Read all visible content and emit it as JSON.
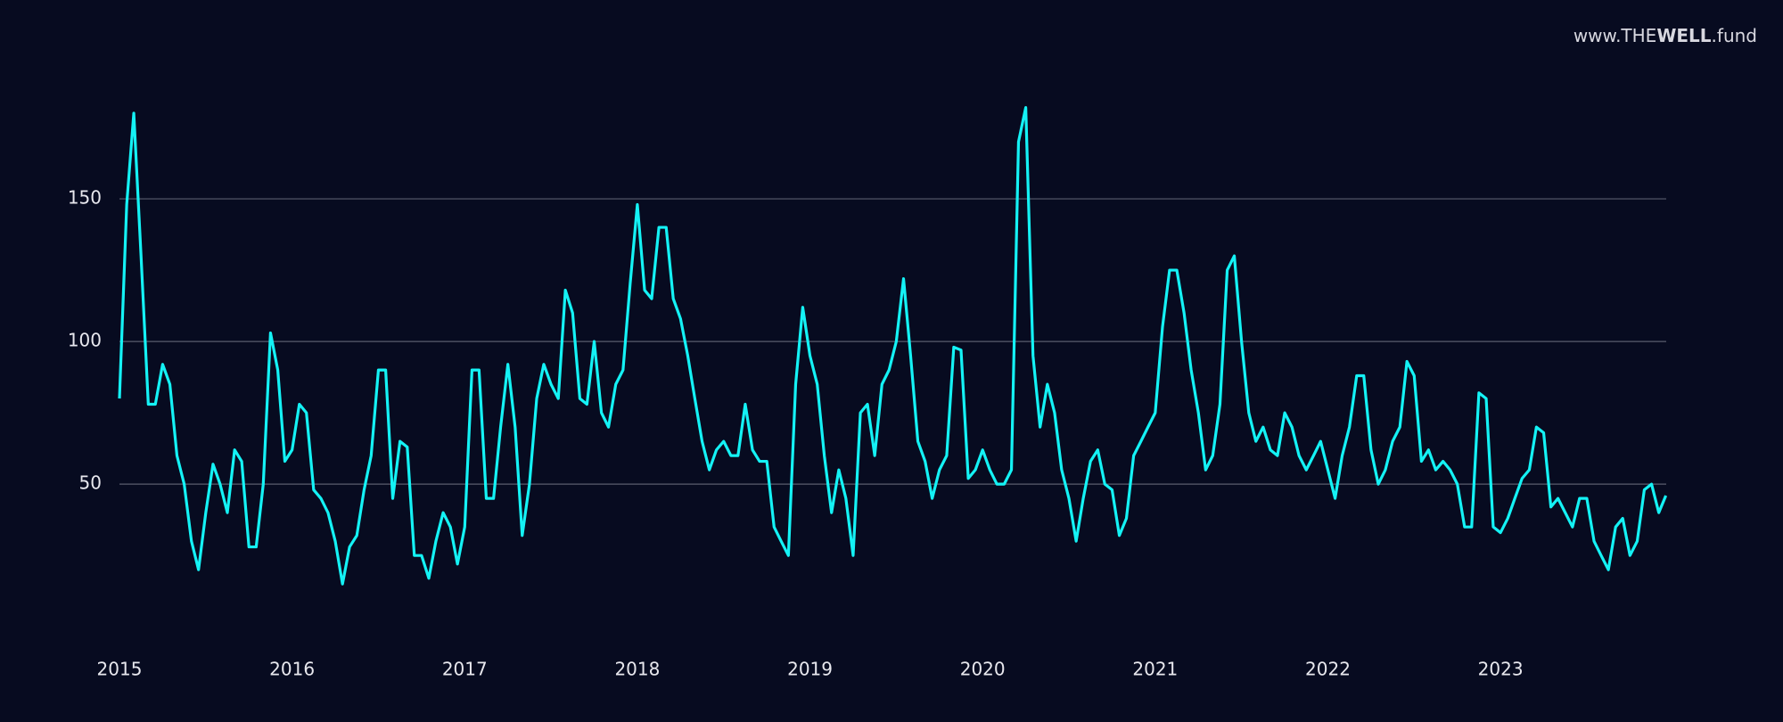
{
  "watermark": {
    "prefix": "www.",
    "brand_light": "THE",
    "brand_bold": "WELL",
    "suffix": ".fund"
  },
  "chart_data": {
    "type": "line",
    "x": [
      2015,
      2015.042,
      2015.083,
      2015.125,
      2015.167,
      2015.208,
      2015.25,
      2015.292,
      2015.333,
      2015.375,
      2015.417,
      2015.458,
      2015.5,
      2015.542,
      2015.583,
      2015.625,
      2015.667,
      2015.708,
      2015.75,
      2015.792,
      2015.833,
      2015.875,
      2015.917,
      2015.958,
      2016,
      2016.042,
      2016.083,
      2016.125,
      2016.167,
      2016.208,
      2016.25,
      2016.292,
      2016.333,
      2016.375,
      2016.417,
      2016.458,
      2016.5,
      2016.542,
      2016.583,
      2016.625,
      2016.667,
      2016.708,
      2016.75,
      2016.792,
      2016.833,
      2016.875,
      2016.917,
      2016.958,
      2017,
      2017.042,
      2017.083,
      2017.125,
      2017.167,
      2017.208,
      2017.25,
      2017.292,
      2017.333,
      2017.375,
      2017.417,
      2017.458,
      2017.5,
      2017.542,
      2017.583,
      2017.625,
      2017.667,
      2017.708,
      2017.75,
      2017.792,
      2017.833,
      2017.875,
      2017.917,
      2017.958,
      2018,
      2018.042,
      2018.083,
      2018.125,
      2018.167,
      2018.208,
      2018.25,
      2018.292,
      2018.333,
      2018.375,
      2018.417,
      2018.458,
      2018.5,
      2018.542,
      2018.583,
      2018.625,
      2018.667,
      2018.708,
      2018.75,
      2018.792,
      2018.833,
      2018.875,
      2018.917,
      2018.958,
      2019,
      2019.042,
      2019.083,
      2019.125,
      2019.167,
      2019.208,
      2019.25,
      2019.292,
      2019.333,
      2019.375,
      2019.417,
      2019.458,
      2019.5,
      2019.542,
      2019.583,
      2019.625,
      2019.667,
      2019.708,
      2019.75,
      2019.792,
      2019.833,
      2019.875,
      2019.917,
      2019.958,
      2020,
      2020.042,
      2020.083,
      2020.125,
      2020.167,
      2020.208,
      2020.25,
      2020.292,
      2020.333,
      2020.375,
      2020.417,
      2020.458,
      2020.5,
      2020.542,
      2020.583,
      2020.625,
      2020.667,
      2020.708,
      2020.75,
      2020.792,
      2020.833,
      2020.875,
      2020.917,
      2020.958,
      2021,
      2021.042,
      2021.083,
      2021.125,
      2021.167,
      2021.208,
      2021.25,
      2021.292,
      2021.333,
      2021.375,
      2021.417,
      2021.458,
      2021.5,
      2021.542,
      2021.583,
      2021.625,
      2021.667,
      2021.708,
      2021.75,
      2021.792,
      2021.833,
      2021.875,
      2021.917,
      2021.958,
      2022,
      2022.042,
      2022.083,
      2022.125,
      2022.167,
      2022.208,
      2022.25,
      2022.292,
      2022.333,
      2022.375,
      2022.417,
      2022.458,
      2022.5,
      2022.542,
      2022.583,
      2022.625,
      2022.667,
      2022.708,
      2022.75,
      2022.792,
      2022.833,
      2022.875,
      2022.917,
      2022.958,
      2023,
      2023.042,
      2023.083,
      2023.125,
      2023.167,
      2023.208,
      2023.25,
      2023.292,
      2023.333,
      2023.375,
      2023.417,
      2023.458,
      2023.5,
      2023.542,
      2023.583,
      2023.625,
      2023.667,
      2023.708,
      2023.75,
      2023.792,
      2023.833,
      2023.875,
      2023.917,
      2023.958
    ],
    "series": [
      {
        "color": "#14f2f5",
        "values": [
          80,
          148,
          180,
          130,
          78,
          78,
          92,
          85,
          60,
          50,
          30,
          20,
          40,
          57,
          50,
          40,
          62,
          58,
          28,
          28,
          50,
          103,
          90,
          58,
          62,
          78,
          75,
          48,
          45,
          40,
          30,
          15,
          28,
          32,
          48,
          60,
          90,
          90,
          45,
          65,
          63,
          25,
          25,
          17,
          30,
          40,
          35,
          22,
          35,
          90,
          90,
          45,
          45,
          70,
          92,
          70,
          32,
          50,
          80,
          92,
          85,
          80,
          118,
          110,
          80,
          78,
          100,
          75,
          70,
          85,
          90,
          120,
          148,
          118,
          115,
          140,
          140,
          115,
          108,
          95,
          80,
          65,
          55,
          62,
          65,
          60,
          60,
          78,
          62,
          58,
          58,
          35,
          30,
          25,
          85,
          112,
          95,
          85,
          60,
          40,
          55,
          45,
          25,
          75,
          78,
          60,
          85,
          90,
          100,
          122,
          95,
          65,
          58,
          45,
          55,
          60,
          98,
          97,
          52,
          55,
          62,
          55,
          50,
          50,
          55,
          170,
          182,
          95,
          70,
          85,
          75,
          55,
          45,
          30,
          45,
          58,
          62,
          50,
          48,
          32,
          38,
          60,
          65,
          70,
          75,
          105,
          125,
          125,
          110,
          90,
          75,
          55,
          60,
          78,
          125,
          130,
          100,
          75,
          65,
          70,
          62,
          60,
          75,
          70,
          60,
          55,
          60,
          65,
          55,
          45,
          60,
          70,
          88,
          88,
          62,
          50,
          55,
          65,
          70,
          93,
          88,
          58,
          62,
          55,
          58,
          55,
          50,
          35,
          35,
          82,
          80,
          35,
          33,
          38,
          45,
          52,
          55,
          70,
          68,
          42,
          45,
          40,
          35,
          45,
          45,
          30,
          25,
          20,
          35,
          38,
          25,
          30,
          48,
          50,
          40,
          46
        ]
      }
    ],
    "xlim": [
      2015,
      2023.96
    ],
    "xticks": [
      2015,
      2016,
      2017,
      2018,
      2019,
      2020,
      2021,
      2022,
      2023
    ],
    "ylim": [
      6,
      190
    ],
    "yticks": [
      50,
      100,
      150
    ],
    "grid": true
  }
}
